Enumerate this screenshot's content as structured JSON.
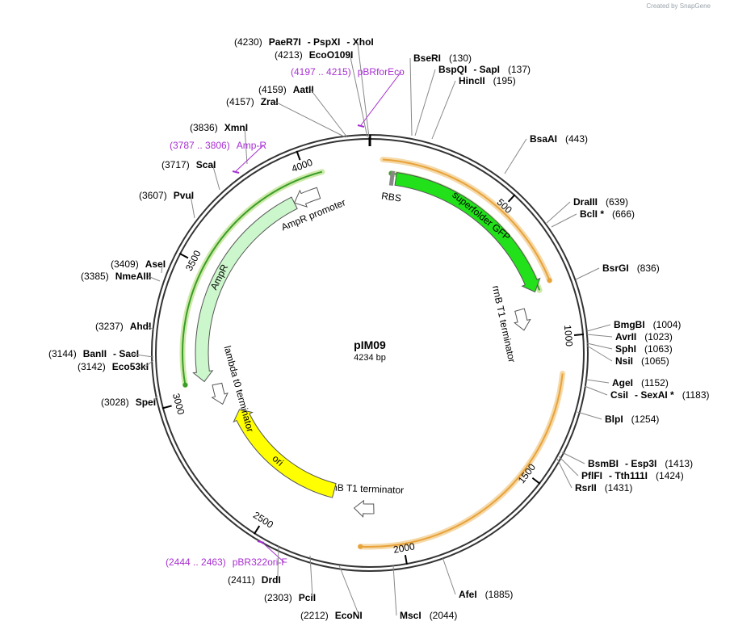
{
  "credit": "Created by SnapGene",
  "plasmid": {
    "name": "pIM09",
    "length_label": "4234 bp",
    "length": 4234
  },
  "ticks": [
    {
      "pos": 500,
      "label": "500"
    },
    {
      "pos": 1000,
      "label": "1000"
    },
    {
      "pos": 1500,
      "label": "1500"
    },
    {
      "pos": 2000,
      "label": "2000"
    },
    {
      "pos": 2500,
      "label": "2500"
    },
    {
      "pos": 3000,
      "label": "3000"
    },
    {
      "pos": 3500,
      "label": "3500"
    },
    {
      "pos": 4000,
      "label": "4000"
    }
  ],
  "features": [
    {
      "id": "superfolder-gfp",
      "label": "superfolder GFP",
      "start": 100,
      "end": 820,
      "color": "#22e01a",
      "kind": "cds"
    },
    {
      "id": "rbs",
      "label": "RBS",
      "start": 85,
      "end": 100,
      "color": "#9c9c9c",
      "kind": "rbs"
    },
    {
      "id": "rrnb-t1-terminator-1",
      "label": "rrnB T1 terminator",
      "start": 870,
      "end": 960,
      "color": "#ffffff",
      "kind": "terminator"
    },
    {
      "id": "rrnb-t1-terminator-2",
      "label": "rrnB T1 terminator",
      "start": 2100,
      "end": 2185,
      "color": "#ffffff",
      "kind": "terminator"
    },
    {
      "id": "ori",
      "label": "ori",
      "start": 2288,
      "end": 2900,
      "color": "#ffff00",
      "kind": "ori"
    },
    {
      "id": "lambda-t0-terminator",
      "label": "lambda t0 terminator",
      "start": 2950,
      "end": 3040,
      "color": "#ffffff",
      "kind": "terminator"
    },
    {
      "id": "ampr",
      "label": "AmpR",
      "start": 3060,
      "end": 3920,
      "color": "#ccf7cc",
      "kind": "cds"
    },
    {
      "id": "ampr-promoter",
      "label": "AmpR promoter",
      "start": 3920,
      "end": 4025,
      "color": "#ffffff",
      "kind": "promoter"
    }
  ],
  "arcs": [
    {
      "id": "orange-arc-1",
      "start": 45,
      "end": 800,
      "strand": 1,
      "color": "#e8a23a",
      "halo": "#f5d9a8"
    },
    {
      "id": "orange-arc-2",
      "start": 1130,
      "end": 2150,
      "strand": 1,
      "color": "#e8a23a",
      "halo": "#f5d9a8"
    },
    {
      "id": "green-arc-1",
      "start": 80,
      "end": 820,
      "strand": -1,
      "color": "#3a9d2a",
      "halo": "#cdeaa8"
    },
    {
      "id": "green-arc-2",
      "start": 3060,
      "end": 4060,
      "strand": -1,
      "color": "#3a9d2a",
      "halo": "#cdeaa8"
    }
  ],
  "sites": [
    {
      "id": "paer7i",
      "pos_label": "(4230)",
      "names": [
        "PaeR7I",
        "PspXI",
        "XhoI"
      ],
      "type": "enzyme"
    },
    {
      "id": "ecoo109i",
      "pos_label": "(4213)",
      "names": [
        "EcoO109I"
      ],
      "type": "enzyme"
    },
    {
      "id": "pbrforeco",
      "pos_label": "(4197 .. 4215)",
      "names": [
        "pBRforEco"
      ],
      "type": "primer"
    },
    {
      "id": "aatii",
      "pos_label": "(4159)",
      "names": [
        "AatII"
      ],
      "type": "enzyme"
    },
    {
      "id": "zrai",
      "pos_label": "(4157)",
      "names": [
        "ZraI"
      ],
      "type": "enzyme"
    },
    {
      "id": "xmni",
      "pos_label": "(3836)",
      "names": [
        "XmnI"
      ],
      "type": "enzyme"
    },
    {
      "id": "amp-r",
      "pos_label": "(3787 .. 3806)",
      "names": [
        "Amp-R"
      ],
      "type": "primer"
    },
    {
      "id": "scai",
      "pos_label": "(3717)",
      "names": [
        "ScaI"
      ],
      "type": "enzyme"
    },
    {
      "id": "pvui",
      "pos_label": "(3607)",
      "names": [
        "PvuI"
      ],
      "type": "enzyme"
    },
    {
      "id": "asei",
      "pos_label": "(3409)",
      "names": [
        "AseI"
      ],
      "type": "enzyme"
    },
    {
      "id": "nmeaiii",
      "pos_label": "(3385)",
      "names": [
        "NmeAIII"
      ],
      "type": "enzyme"
    },
    {
      "id": "ahdi",
      "pos_label": "(3237)",
      "names": [
        "AhdI"
      ],
      "type": "enzyme"
    },
    {
      "id": "banii",
      "pos_label": "(3144)",
      "names": [
        "BanII",
        "SacI"
      ],
      "type": "enzyme"
    },
    {
      "id": "eco53ki",
      "pos_label": "(3142)",
      "names": [
        "Eco53kI"
      ],
      "type": "enzyme"
    },
    {
      "id": "spei",
      "pos_label": "(3028)",
      "names": [
        "SpeI"
      ],
      "type": "enzyme"
    },
    {
      "id": "pbr322ori-f",
      "pos_label": "(2444 .. 2463)",
      "names": [
        "pBR322ori-F"
      ],
      "type": "primer"
    },
    {
      "id": "drdi",
      "pos_label": "(2411)",
      "names": [
        "DrdI"
      ],
      "type": "enzyme"
    },
    {
      "id": "pcii",
      "pos_label": "(2303)",
      "names": [
        "PciI"
      ],
      "type": "enzyme"
    },
    {
      "id": "econi",
      "pos_label": "(2212)",
      "names": [
        "EcoNI"
      ],
      "type": "enzyme"
    },
    {
      "id": "msci",
      "pos_label": "(2044)",
      "names": [
        "MscI"
      ],
      "type": "enzyme"
    },
    {
      "id": "afei",
      "pos_label": "(1885)",
      "names": [
        "AfeI"
      ],
      "type": "enzyme"
    },
    {
      "id": "bseri",
      "pos_label": "(130)",
      "names": [
        "BseRI"
      ],
      "type": "enzyme"
    },
    {
      "id": "bspqi",
      "pos_label": "(137)",
      "names": [
        "BspQI",
        "SapI"
      ],
      "type": "enzyme"
    },
    {
      "id": "hincii",
      "pos_label": "(195)",
      "names": [
        "HincII"
      ],
      "type": "enzyme"
    },
    {
      "id": "bsaai",
      "pos_label": "(443)",
      "names": [
        "BsaAI"
      ],
      "type": "enzyme"
    },
    {
      "id": "draiii",
      "pos_label": "(639)",
      "names": [
        "DraIII"
      ],
      "type": "enzyme"
    },
    {
      "id": "bcli",
      "pos_label": "(666)",
      "names": [
        "BclI *"
      ],
      "type": "enzyme"
    },
    {
      "id": "bsrgi",
      "pos_label": "(836)",
      "names": [
        "BsrGI"
      ],
      "type": "enzyme"
    },
    {
      "id": "bmgbi",
      "pos_label": "(1004)",
      "names": [
        "BmgBI"
      ],
      "type": "enzyme"
    },
    {
      "id": "avrii",
      "pos_label": "(1023)",
      "names": [
        "AvrII"
      ],
      "type": "enzyme"
    },
    {
      "id": "sphi",
      "pos_label": "(1063)",
      "names": [
        "SphI"
      ],
      "type": "enzyme"
    },
    {
      "id": "nsii",
      "pos_label": "(1065)",
      "names": [
        "NsiI"
      ],
      "type": "enzyme"
    },
    {
      "id": "agei",
      "pos_label": "(1152)",
      "names": [
        "AgeI"
      ],
      "type": "enzyme"
    },
    {
      "id": "csii",
      "pos_label": "(1183)",
      "names": [
        "CsiI",
        "SexAI *"
      ],
      "type": "enzyme"
    },
    {
      "id": "blpi",
      "pos_label": "(1254)",
      "names": [
        "BlpI"
      ],
      "type": "enzyme"
    },
    {
      "id": "bsmbi",
      "pos_label": "(1413)",
      "names": [
        "BsmBI",
        "Esp3I"
      ],
      "type": "enzyme"
    },
    {
      "id": "pflfi",
      "pos_label": "(1424)",
      "names": [
        "PflFI",
        "Tth111I"
      ],
      "type": "enzyme"
    },
    {
      "id": "rsrii",
      "pos_label": "(1431)",
      "names": [
        "RsrII"
      ],
      "type": "enzyme"
    }
  ]
}
